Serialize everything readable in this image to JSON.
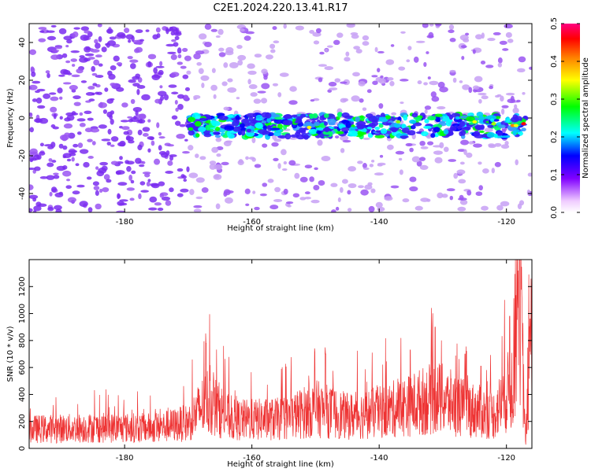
{
  "title": "C2E1.2024.220.13.41.R17",
  "chart_data": [
    {
      "type": "heatmap",
      "xlabel": "Height of straight line (km)",
      "ylabel": "Frequency (Hz)",
      "xlim": [
        -195,
        -116
      ],
      "ylim": [
        -50,
        50
      ],
      "xticks": [
        -180,
        -160,
        -140,
        -120
      ],
      "yticks": [
        -40,
        -20,
        0,
        20,
        40
      ],
      "colorbar": {
        "label": "Normalized spectral amplitude",
        "range": [
          0,
          0.5
        ],
        "ticks": [
          "0.0",
          "0.1",
          "0.2",
          "0.3",
          "0.4",
          "0.5"
        ],
        "colors": [
          "#ffffff",
          "#f0ccff",
          "#8000ff",
          "#0000ff",
          "#00ffff",
          "#00ff00",
          "#ffff00",
          "#ff8000",
          "#ff0000",
          "#ff0080"
        ]
      },
      "band": {
        "center_frequency": -4,
        "half_width": 6,
        "x_start": -170,
        "x_end": -117
      },
      "noise_note_colors": [
        "#7a2cf0",
        "#9a55f2",
        "#c7a0f5"
      ]
    },
    {
      "type": "line",
      "xlabel": "Height of straight line (km)",
      "ylabel": "SNR (10 * v/v)",
      "xlim": [
        -195,
        -116
      ],
      "ylim": [
        0,
        1400
      ],
      "xticks": [
        -180,
        -160,
        -140,
        -120
      ],
      "yticks": [
        0,
        200,
        400,
        600,
        800,
        1000,
        1200
      ],
      "color": "#ee3333",
      "grid": false,
      "series_summary": [
        {
          "x": -195,
          "y": 150
        },
        {
          "x": -185,
          "y": 160
        },
        {
          "x": -175,
          "y": 160
        },
        {
          "x": -170,
          "y": 200
        },
        {
          "x": -167,
          "y": 370
        },
        {
          "x": -163,
          "y": 220
        },
        {
          "x": -155,
          "y": 230
        },
        {
          "x": -150,
          "y": 310
        },
        {
          "x": -145,
          "y": 250
        },
        {
          "x": -140,
          "y": 280
        },
        {
          "x": -135,
          "y": 340
        },
        {
          "x": -131,
          "y": 400
        },
        {
          "x": -127,
          "y": 320
        },
        {
          "x": -122,
          "y": 260
        },
        {
          "x": -119,
          "y": 500
        },
        {
          "x": -118,
          "y": 1400
        },
        {
          "x": -117,
          "y": 50
        },
        {
          "x": -116,
          "y": 950
        }
      ],
      "peaks": [
        {
          "x": -167.2,
          "y": 780
        },
        {
          "x": -148.4,
          "y": 700
        },
        {
          "x": -135.1,
          "y": 730
        },
        {
          "x": -131.2,
          "y": 900
        },
        {
          "x": -126.5,
          "y": 700
        },
        {
          "x": -124.0,
          "y": 610
        },
        {
          "x": -119.5,
          "y": 980
        },
        {
          "x": -118.0,
          "y": 1400
        },
        {
          "x": -116.3,
          "y": 960
        }
      ]
    }
  ]
}
